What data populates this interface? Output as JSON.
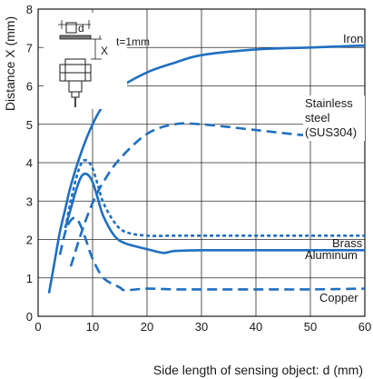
{
  "chart_data": {
    "type": "line",
    "title": "",
    "xlabel": "Side length of sensing object: d (mm)",
    "ylabel": "Distance X (mm)",
    "xlim": [
      0,
      60
    ],
    "ylim": [
      0,
      8
    ],
    "x_ticks": [
      0,
      10,
      20,
      30,
      40,
      50,
      60
    ],
    "y_ticks": [
      0,
      1,
      2,
      3,
      4,
      5,
      6,
      7,
      8
    ],
    "grid": true,
    "series": [
      {
        "name": "Iron",
        "style": "solid",
        "x": [
          2,
          3,
          4,
          5,
          6,
          8,
          10,
          12,
          15,
          20,
          25,
          30,
          40,
          50,
          60
        ],
        "y": [
          0.6,
          1.4,
          2.2,
          2.8,
          3.4,
          4.3,
          5.0,
          5.5,
          5.95,
          6.35,
          6.6,
          6.8,
          6.95,
          7.0,
          7.05
        ]
      },
      {
        "name": "Stainless steel (SUS304)",
        "style": "dashed",
        "x": [
          6,
          8,
          10,
          12,
          15,
          20,
          25,
          30,
          40,
          50,
          60
        ],
        "y": [
          1.3,
          2.2,
          2.95,
          3.5,
          4.1,
          4.75,
          5.0,
          5.0,
          4.85,
          4.7,
          4.6
        ]
      },
      {
        "name": "Brass",
        "style": "dotted",
        "x": [
          5,
          6,
          7,
          8,
          9,
          10,
          11,
          12,
          14,
          16,
          20,
          25,
          30,
          40,
          50,
          60
        ],
        "y": [
          2.3,
          3.0,
          3.6,
          4.0,
          4.05,
          3.85,
          3.4,
          2.95,
          2.45,
          2.2,
          2.1,
          2.1,
          2.1,
          2.1,
          2.1,
          2.1
        ]
      },
      {
        "name": "Aluminum",
        "style": "solid",
        "x": [
          5,
          6,
          7,
          8,
          9,
          10,
          11,
          12,
          14,
          16,
          20,
          23,
          25,
          30,
          40,
          50,
          60
        ],
        "y": [
          2.3,
          2.8,
          3.3,
          3.65,
          3.7,
          3.5,
          3.05,
          2.6,
          2.1,
          1.9,
          1.75,
          1.65,
          1.7,
          1.72,
          1.72,
          1.72,
          1.72
        ]
      },
      {
        "name": "Copper",
        "style": "dashed",
        "x": [
          4,
          5,
          6,
          7,
          8,
          9,
          10,
          12,
          15,
          16,
          20,
          25,
          30,
          40,
          50,
          60
        ],
        "y": [
          1.6,
          2.2,
          2.5,
          2.55,
          2.3,
          1.9,
          1.5,
          1.0,
          0.75,
          0.68,
          0.72,
          0.7,
          0.7,
          0.7,
          0.7,
          0.72
        ]
      }
    ],
    "labels": {
      "iron": "Iron",
      "stainless_1": "Stainless",
      "stainless_2": "steel",
      "stainless_3": "(SUS304)",
      "brass": "Brass",
      "aluminum": "Aluminum",
      "copper": "Copper"
    },
    "inset": {
      "d_label": "d",
      "t_label": "t=1mm",
      "x_label": "X"
    }
  }
}
